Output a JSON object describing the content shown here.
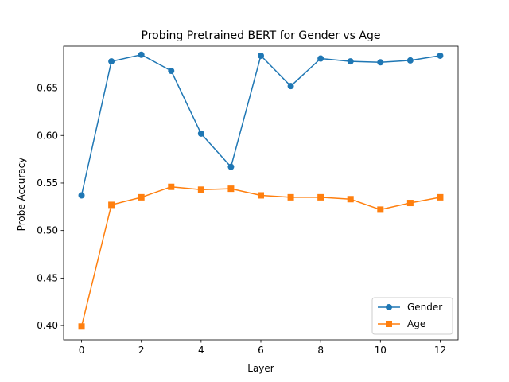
{
  "chart_data": {
    "type": "line",
    "title": "Probing Pretrained BERT for Gender vs Age",
    "xlabel": "Layer",
    "ylabel": "Probe Accuracy",
    "xlim": [
      -0.6,
      12.6
    ],
    "ylim": [
      0.385,
      0.694
    ],
    "x": [
      0,
      1,
      2,
      3,
      4,
      5,
      6,
      7,
      8,
      9,
      10,
      11,
      12
    ],
    "x_ticks": [
      0,
      2,
      4,
      6,
      8,
      10,
      12
    ],
    "x_tick_labels": [
      "0",
      "2",
      "4",
      "6",
      "8",
      "10",
      "12"
    ],
    "y_ticks": [
      0.4,
      0.45,
      0.5,
      0.55,
      0.6,
      0.65
    ],
    "y_tick_labels": [
      "0.40",
      "0.45",
      "0.50",
      "0.55",
      "0.60",
      "0.65"
    ],
    "grid": false,
    "legend_position": "lower-right",
    "series": [
      {
        "name": "Gender",
        "marker": "circle",
        "color": "#1f77b4",
        "values": [
          0.537,
          0.678,
          0.685,
          0.668,
          0.602,
          0.567,
          0.684,
          0.652,
          0.681,
          0.678,
          0.677,
          0.679,
          0.684
        ]
      },
      {
        "name": "Age",
        "marker": "square",
        "color": "#ff7f0e",
        "values": [
          0.399,
          0.527,
          0.535,
          0.546,
          0.543,
          0.544,
          0.537,
          0.535,
          0.535,
          0.533,
          0.522,
          0.529,
          0.535
        ]
      }
    ]
  }
}
